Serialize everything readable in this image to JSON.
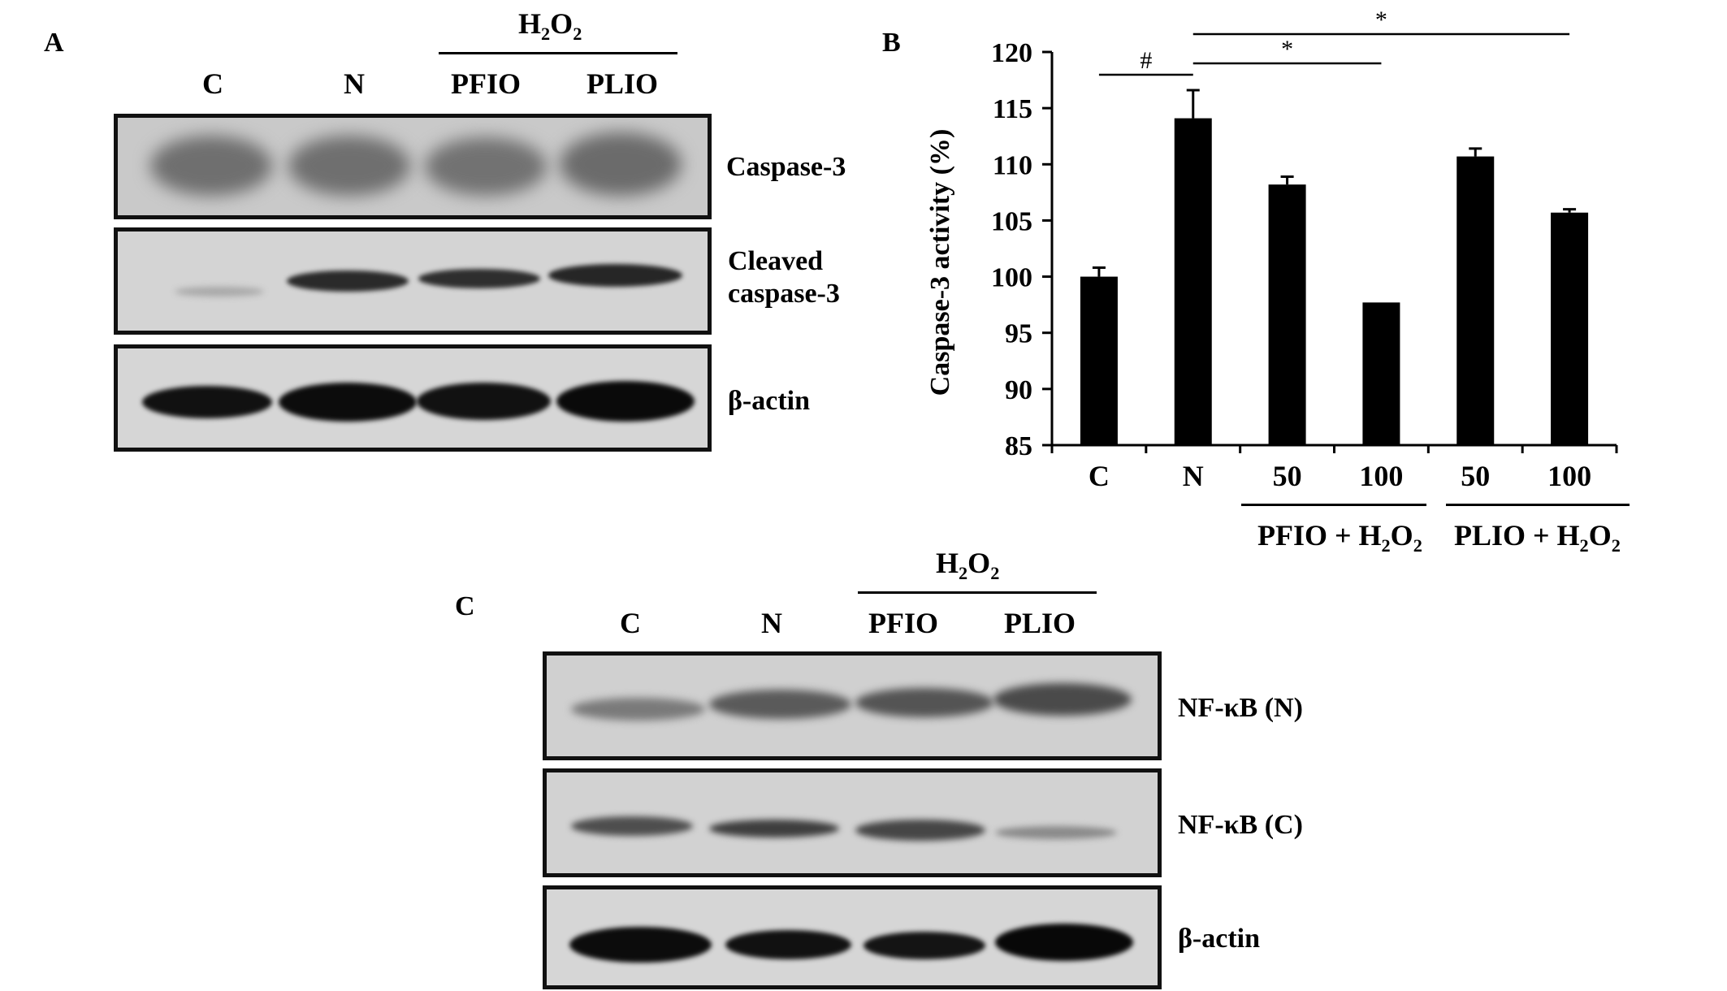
{
  "panel_a": {
    "letter": "A",
    "treatment_label": "H",
    "treatment_sub1": "2",
    "treatment_mid": "O",
    "treatment_sub2": "2",
    "lanes": [
      "C",
      "N",
      "PFIO",
      "PLIO"
    ],
    "proteins": {
      "caspase3": "Caspase-3",
      "cleaved_line1": "Cleaved",
      "cleaved_line2": "caspase-3",
      "actin": "β-actin"
    }
  },
  "panel_b": {
    "letter": "B",
    "ylabel": "Caspase-3 activity (%)",
    "sig_hash": "#",
    "sig_star": "*",
    "group_label_1": "PFIO + H",
    "group_label_2": "PLIO + H",
    "group_sub_a": "2",
    "group_mid": "O",
    "group_sub_b": "2"
  },
  "panel_c": {
    "letter": "C",
    "treatment_label": "H",
    "treatment_sub1": "2",
    "treatment_mid": "O",
    "treatment_sub2": "2",
    "lanes": [
      "C",
      "N",
      "PFIO",
      "PLIO"
    ],
    "proteins": {
      "nfkb_n": "NF-κB (N)",
      "nfkb_c": "NF-κB (C)",
      "actin": "β-actin"
    }
  },
  "chart_data": {
    "type": "bar",
    "categories": [
      "C",
      "N",
      "50",
      "100",
      "50",
      "100"
    ],
    "groups": [
      {
        "label": "PFIO + H2O2",
        "categories": [
          "50",
          "100"
        ]
      },
      {
        "label": "PLIO + H2O2",
        "categories": [
          "50",
          "100"
        ]
      }
    ],
    "values": [
      100.0,
      114.1,
      108.2,
      97.7,
      110.7,
      105.7
    ],
    "errors": [
      0.8,
      2.5,
      0.7,
      0.0,
      0.7,
      0.3
    ],
    "ylabel": "Caspase-3 activity (%)",
    "ylim": [
      85,
      120
    ],
    "yticks": [
      85,
      90,
      95,
      100,
      105,
      110,
      115,
      120
    ],
    "significance": [
      {
        "symbol": "#",
        "from": "C",
        "to": "N"
      },
      {
        "symbol": "*",
        "from": "N",
        "to": "100 (PFIO)"
      },
      {
        "symbol": "*",
        "from": "N",
        "to": "100 (PLIO)"
      }
    ],
    "bar_color": "#000000",
    "grid": false
  }
}
